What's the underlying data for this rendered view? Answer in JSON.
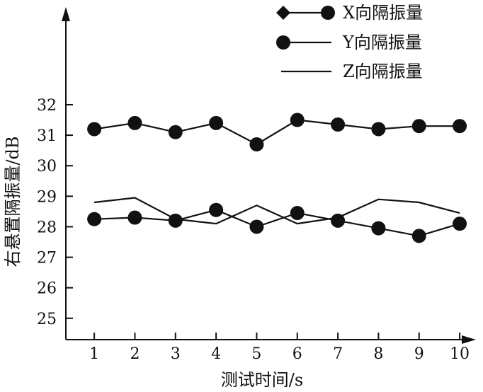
{
  "chart_data": {
    "type": "line",
    "x": [
      1,
      2,
      3,
      4,
      5,
      6,
      7,
      8,
      9,
      10
    ],
    "xlabel": "测试时间/s",
    "ylabel": "右悬置隔振量/dB",
    "xticks": [
      "1",
      "2",
      "3",
      "4",
      "5",
      "6",
      "7",
      "8",
      "9",
      "10"
    ],
    "yticks": [
      "25",
      "26",
      "27",
      "28",
      "29",
      "30",
      "31",
      "32"
    ],
    "xlim": [
      0.3,
      10.4
    ],
    "ylim": [
      24.3,
      35.2
    ],
    "grid": false,
    "legend_position": "top-right",
    "series": [
      {
        "name": "X向隔振量",
        "marker": "circle",
        "line": true,
        "values": [
          31.2,
          31.4,
          31.1,
          31.4,
          30.7,
          31.5,
          31.35,
          31.2,
          31.3,
          31.3
        ]
      },
      {
        "name": "Y向隔振量",
        "marker": "circle",
        "line": true,
        "values": [
          28.25,
          28.3,
          28.2,
          28.55,
          28.0,
          28.45,
          28.2,
          27.95,
          27.7,
          28.1
        ]
      },
      {
        "name": "Z向隔振量",
        "marker": "none",
        "line": true,
        "values": [
          28.8,
          28.95,
          28.25,
          28.1,
          28.7,
          28.1,
          28.3,
          28.9,
          28.8,
          28.45
        ]
      }
    ],
    "legend": [
      {
        "label": "X向隔振量",
        "symbols": [
          "diamond",
          "circle"
        ]
      },
      {
        "label": "Y向隔振量",
        "symbols": [
          "circle"
        ]
      },
      {
        "label": "Z向隔振量",
        "symbols": []
      }
    ],
    "colors": {
      "ink": "#111111"
    }
  }
}
